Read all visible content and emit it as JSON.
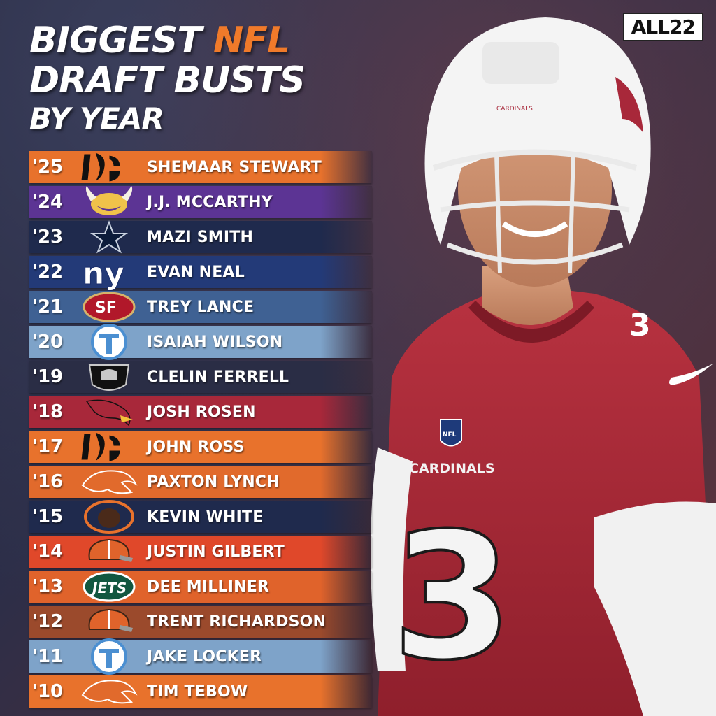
{
  "header": {
    "title_prefix": "BIGGEST",
    "title_accent": "NFL",
    "title_line2": "DRAFT BUSTS",
    "title_line3": "BY YEAR",
    "brand": "ALL22",
    "accent_color": "#f07a2a"
  },
  "player": {
    "helmet_text": "CARDINALS",
    "jersey_text": "CARDINALS",
    "jersey_number": "3",
    "shoulder_number": "3",
    "league_mark": "NFL"
  },
  "rows": [
    {
      "year": "'25",
      "name": "SHEMAAR STEWART",
      "logo": "bengals-logo",
      "color": "#e8722c"
    },
    {
      "year": "'24",
      "name": "J.J. MCCARTHY",
      "logo": "vikings-logo",
      "color": "#5c3494"
    },
    {
      "year": "'23",
      "name": "MAZI SMITH",
      "logo": "cowboys-logo",
      "color": "#1f2a4d"
    },
    {
      "year": "'22",
      "name": "EVAN NEAL",
      "logo": "giants-logo",
      "color": "#233a78"
    },
    {
      "year": "'21",
      "name": "TREY LANCE",
      "logo": "49ers-logo",
      "color": "#3f6193"
    },
    {
      "year": "'20",
      "name": "ISAIAH WILSON",
      "logo": "titans-logo",
      "color": "#7ea3c9"
    },
    {
      "year": "'19",
      "name": "CLELIN FERRELL",
      "logo": "raiders-logo",
      "color": "#2a2d45"
    },
    {
      "year": "'18",
      "name": "JOSH ROSEN",
      "logo": "cardinals-logo",
      "color": "#a8283a"
    },
    {
      "year": "'17",
      "name": "JOHN ROSS",
      "logo": "bengals-logo",
      "color": "#e8722c"
    },
    {
      "year": "'16",
      "name": "PAXTON LYNCH",
      "logo": "broncos-logo",
      "color": "#e16a2c"
    },
    {
      "year": "'15",
      "name": "KEVIN WHITE",
      "logo": "bears-logo",
      "color": "#1f2a4d"
    },
    {
      "year": "'14",
      "name": "JUSTIN GILBERT",
      "logo": "browns-logo",
      "color": "#e0482a"
    },
    {
      "year": "'13",
      "name": "DEE MILLINER",
      "logo": "jets-logo",
      "color": "#e0632b"
    },
    {
      "year": "'12",
      "name": "TRENT RICHARDSON",
      "logo": "browns-logo",
      "color": "#9b4a2c"
    },
    {
      "year": "'11",
      "name": "JAKE LOCKER",
      "logo": "titans-logo",
      "color": "#7ea3c9"
    },
    {
      "year": "'10",
      "name": "TIM TEBOW",
      "logo": "broncos-logo",
      "color": "#e8722c"
    }
  ]
}
